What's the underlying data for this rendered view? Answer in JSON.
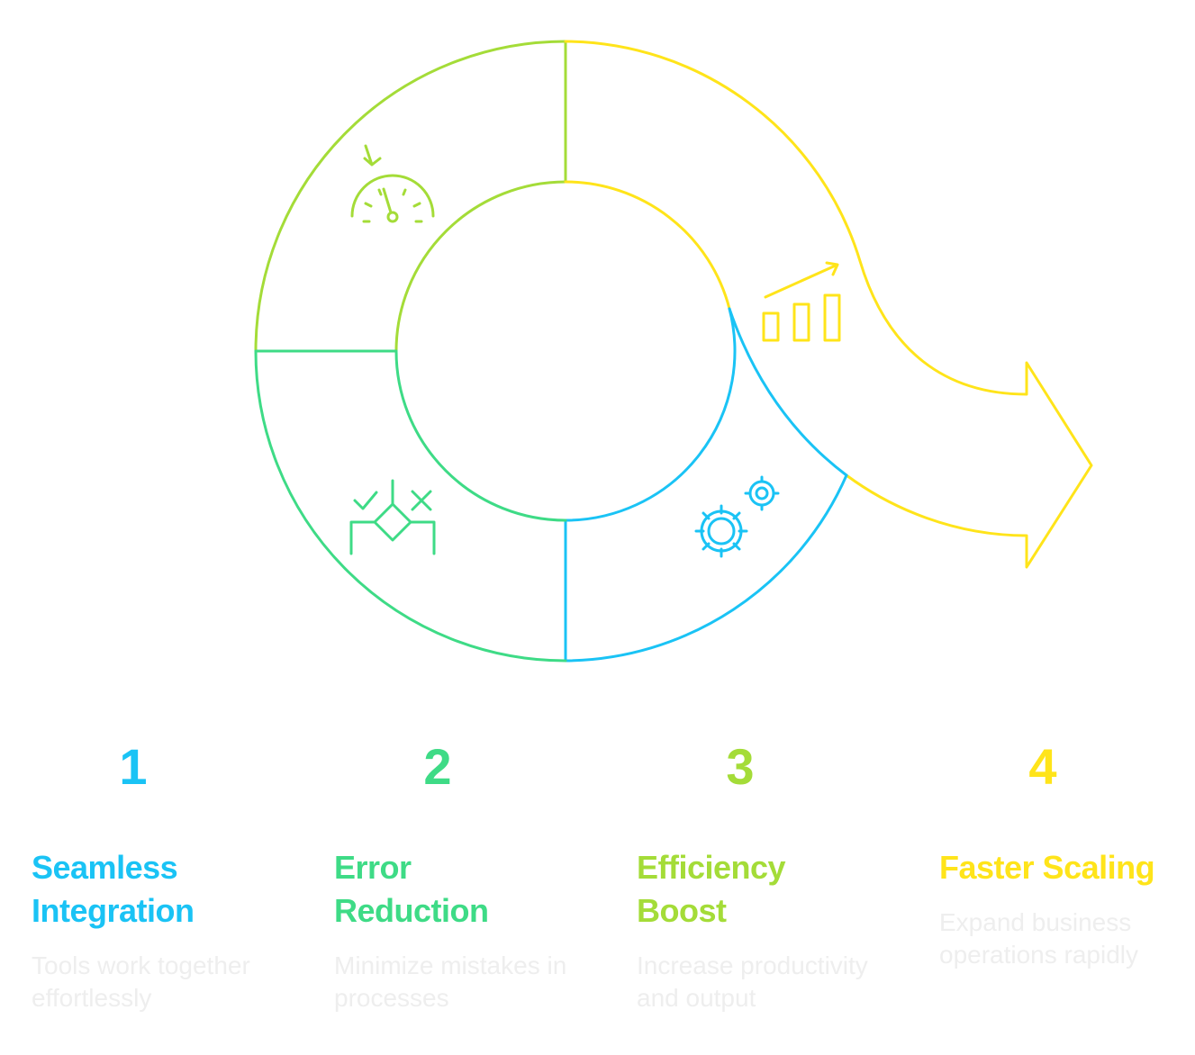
{
  "colors": {
    "blue": "#1ac3f5",
    "green": "#3edb86",
    "lime": "#a4dc38",
    "yellow": "#ffe41a",
    "desc": "#eeeeee"
  },
  "steps": [
    {
      "number": "1",
      "title_line1": "Seamless",
      "title_line2": "Integration",
      "description": "Tools work together effortlessly",
      "icon": "gears-icon",
      "color": "#1ac3f5"
    },
    {
      "number": "2",
      "title_line1": "Error",
      "title_line2": "Reduction",
      "description": "Minimize mistakes in processes",
      "icon": "decision-check-x-icon",
      "color": "#3edb86"
    },
    {
      "number": "3",
      "title_line1": "Efficiency",
      "title_line2": "Boost",
      "description": "Increase productivity and output",
      "icon": "speedometer-icon",
      "color": "#a4dc38"
    },
    {
      "number": "4",
      "title_line1": "Faster Scaling",
      "title_line2": "",
      "description": "Expand business operations rapidly",
      "icon": "growth-chart-icon",
      "color": "#ffe41a"
    }
  ]
}
